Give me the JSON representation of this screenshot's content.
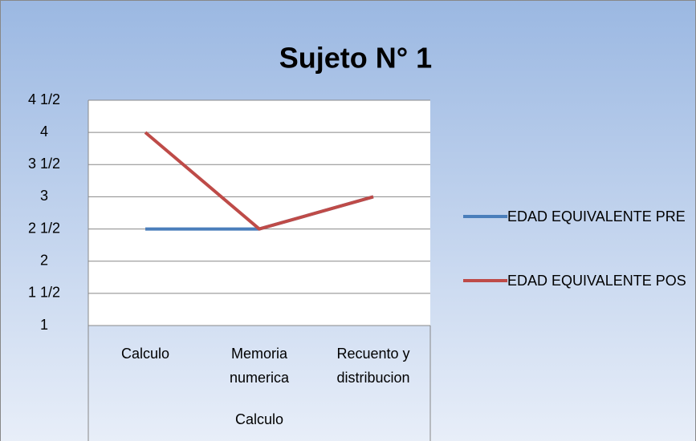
{
  "chart_data": {
    "type": "line",
    "title": "Sujeto N° 1",
    "categories": [
      "Calculo",
      "Memoria numerica",
      "Recuento y distribucion"
    ],
    "category_group": "Calculo",
    "series": [
      {
        "name": "EDAD EQUIVALENTE PRE",
        "color": "#4a7ebb",
        "values": [
          2.5,
          2.5,
          3
        ]
      },
      {
        "name": "EDAD EQUIVALENTE POS",
        "color": "#be4b48",
        "values": [
          4,
          2.5,
          3
        ]
      }
    ],
    "ylim": [
      1,
      4.5
    ],
    "yticks": [
      1,
      {
        "value": 1.5,
        "label": "1 1/2"
      },
      2,
      {
        "value": 2.5,
        "label": "2 1/2"
      },
      3,
      {
        "value": 3.5,
        "label": "3 1/2"
      },
      4,
      {
        "value": 4.5,
        "label": "4 1/2"
      }
    ],
    "grid": true,
    "legend": "right"
  }
}
